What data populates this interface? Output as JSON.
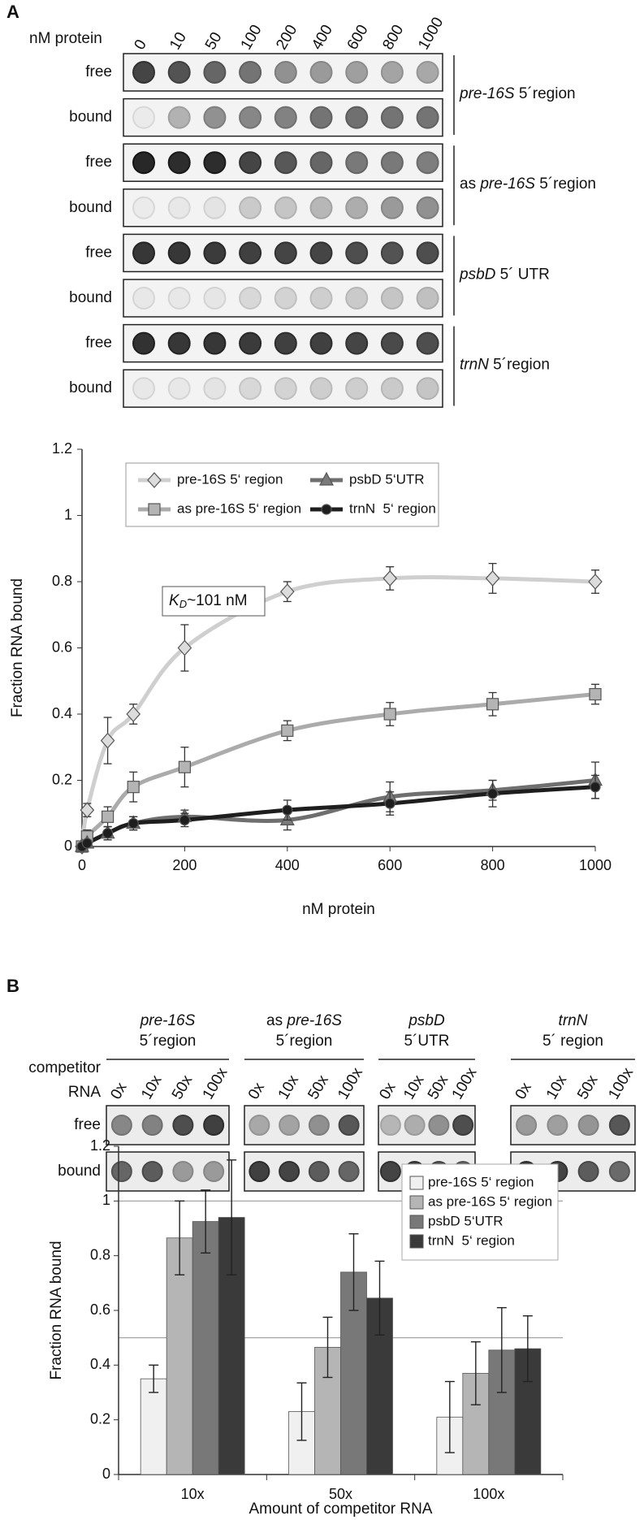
{
  "panel_labels": [
    "A",
    "B"
  ],
  "blot_a": {
    "header": "nM protein",
    "columns": [
      "0",
      "10",
      "50",
      "100",
      "200",
      "400",
      "600",
      "800",
      "1000"
    ],
    "groups": [
      {
        "gene": "pre-16S",
        "suffix": " 5´region",
        "rows": [
          "free",
          "bound"
        ]
      },
      {
        "prefix": "as ",
        "gene": "pre-16S",
        "suffix": " 5´region",
        "rows": [
          "free",
          "bound"
        ]
      },
      {
        "gene": "psbD",
        "suffix": " 5´ UTR",
        "rows": [
          "free",
          "bound"
        ]
      },
      {
        "gene": "trnN",
        "suffix": " 5´region",
        "rows": [
          "free",
          "bound"
        ]
      }
    ]
  },
  "blot_b": {
    "header_lines": [
      "competitor",
      "RNA"
    ],
    "rows": [
      "free",
      "bound"
    ],
    "groups": [
      {
        "gene": "pre-16S",
        "line2": "5´region",
        "columns": [
          "0x",
          "10x",
          "50x",
          "100x"
        ]
      },
      {
        "prefix": "as ",
        "gene": "pre-16S",
        "line2": "5´region",
        "columns": [
          "0x",
          "10x",
          "50x",
          "100x"
        ]
      },
      {
        "gene": "psbD",
        "line2": "5´UTR",
        "columns": [
          "0x",
          "10x",
          "50x",
          "100x"
        ]
      },
      {
        "gene": "trnN",
        "line2": "5´ region",
        "columns": [
          "0x",
          "10x",
          "50x",
          "100x"
        ]
      }
    ]
  },
  "chart_data": [
    {
      "type": "line",
      "x_label": "nM protein",
      "y_label": "Fraction RNA bound",
      "x": [
        0,
        10,
        50,
        100,
        200,
        400,
        600,
        800,
        1000
      ],
      "xlim": [
        0,
        1000
      ],
      "xticks": [
        0,
        200,
        400,
        600,
        800,
        1000
      ],
      "ylim": [
        0,
        1.2
      ],
      "yticks": [
        0,
        0.2,
        0.4,
        0.6,
        0.8,
        1,
        1.2
      ],
      "legend": "top",
      "smooth": true,
      "annotation": {
        "symbol": "K",
        "subscript": "D",
        "text": "~101 nM"
      },
      "series": [
        {
          "name": "pre-16S 5‘ region",
          "color": "#cfcfcf",
          "marker": "diamond",
          "marker_color": "#dcdcdc",
          "values": [
            0,
            0.11,
            0.32,
            0.4,
            0.6,
            0.77,
            0.81,
            0.81,
            0.8
          ],
          "errors": [
            0.01,
            0.02,
            0.07,
            0.03,
            0.07,
            0.03,
            0.035,
            0.045,
            0.035
          ]
        },
        {
          "name": "as pre-16S 5‘ region",
          "color": "#ababab",
          "marker": "square",
          "marker_color": "#b4b4b4",
          "values": [
            0,
            0.03,
            0.09,
            0.18,
            0.24,
            0.35,
            0.4,
            0.43,
            0.46
          ],
          "errors": [
            0.01,
            0.02,
            0.03,
            0.045,
            0.06,
            0.03,
            0.035,
            0.035,
            0.03
          ]
        },
        {
          "name": "psbD 5‘UTR",
          "color": "#6f6f6f",
          "marker": "triangle",
          "marker_color": "#7a7a7a",
          "values": [
            0,
            0.01,
            0.04,
            0.07,
            0.09,
            0.08,
            0.15,
            0.17,
            0.2
          ],
          "errors": [
            0.01,
            0.01,
            0.02,
            0.02,
            0.02,
            0.03,
            0.045,
            0.03,
            0.055
          ]
        },
        {
          "name": "trnN  5‘ region",
          "color": "#1e1e1e",
          "marker": "circle",
          "marker_color": "#1e1e1e",
          "values": [
            0,
            0.01,
            0.04,
            0.07,
            0.08,
            0.11,
            0.13,
            0.16,
            0.18
          ],
          "errors": [
            0.005,
            0.01,
            0.02,
            0.02,
            0.02,
            0.03,
            0.035,
            0.04,
            0.035
          ]
        }
      ]
    },
    {
      "type": "bar",
      "x_label": "Amount of competitor RNA",
      "y_label": "Fraction RNA bound",
      "categories": [
        "10x",
        "50x",
        "100x"
      ],
      "ylim": [
        0,
        1.2
      ],
      "yticks": [
        0,
        0.2,
        0.4,
        0.6,
        0.8,
        1,
        1.2
      ],
      "reference_lines": [
        1,
        0.5
      ],
      "legend": "top-right",
      "series": [
        {
          "name": "pre-16S 5‘ region",
          "color": "#f0f0f0",
          "values": [
            0.35,
            0.23,
            0.21
          ],
          "errors": [
            0.05,
            0.105,
            0.13
          ]
        },
        {
          "name": "as pre-16S 5‘ region",
          "color": "#b5b5b5",
          "values": [
            0.865,
            0.465,
            0.37
          ],
          "errors": [
            0.135,
            0.11,
            0.115
          ]
        },
        {
          "name": "psbD 5‘UTR",
          "color": "#787878",
          "values": [
            0.925,
            0.74,
            0.455
          ],
          "errors": [
            0.115,
            0.14,
            0.155
          ]
        },
        {
          "name": "trnN  5‘ region",
          "color": "#3a3a3a",
          "values": [
            0.94,
            0.645,
            0.46
          ],
          "errors": [
            0.21,
            0.135,
            0.12
          ]
        }
      ]
    }
  ]
}
